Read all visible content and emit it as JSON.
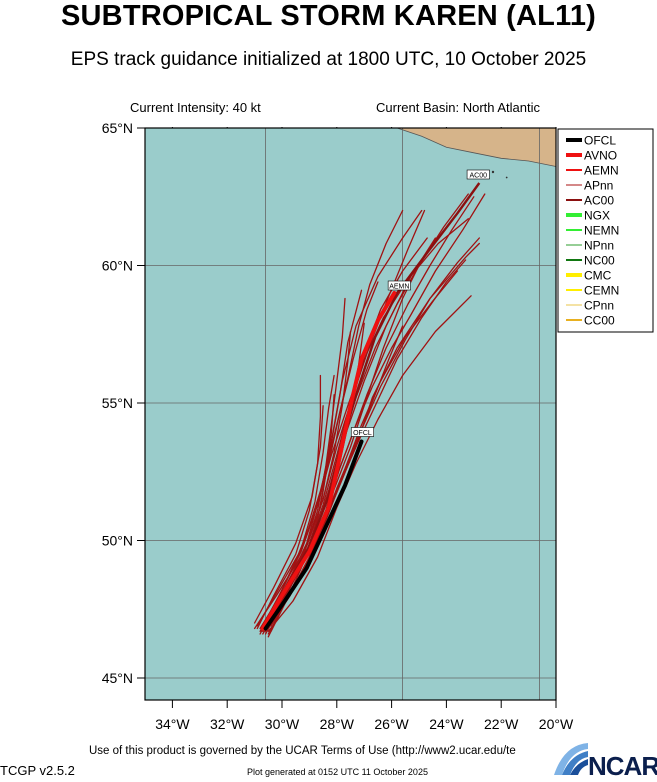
{
  "header": {
    "title": "SUBTROPICAL STORM KAREN (AL11)",
    "subtitle": "EPS track guidance initialized at 1800 UTC, 10 October 2025",
    "intensity": "Current Intensity: 40 kt",
    "basin": "Current Basin: North Atlantic"
  },
  "footer": {
    "terms": "Use of this product is governed by the UCAR Terms of Use (http://www2.ucar.edu/te",
    "version": "TCGP v2.5.2",
    "generated": "Plot generated at 0152 UTC   11 October 2025",
    "logo": "NCAR"
  },
  "map": {
    "lon_range": [
      -35,
      -20
    ],
    "lat_range": [
      44.2,
      65
    ],
    "ocean_color": "#9acccb",
    "land_color": "#d6b48a",
    "lon_ticks": [
      {
        "value": -34,
        "label": "34°W"
      },
      {
        "value": -32,
        "label": "32°W"
      },
      {
        "value": -30,
        "label": "30°W"
      },
      {
        "value": -28,
        "label": "28°W"
      },
      {
        "value": -26,
        "label": "26°W"
      },
      {
        "value": -24,
        "label": "24°W"
      },
      {
        "value": -22,
        "label": "22°W"
      },
      {
        "value": -20,
        "label": "20°W"
      }
    ],
    "lat_ticks": [
      {
        "value": 45,
        "label": "45°N"
      },
      {
        "value": 50,
        "label": "50°N"
      },
      {
        "value": 55,
        "label": "55°N"
      },
      {
        "value": 60,
        "label": "60°N"
      },
      {
        "value": 65,
        "label": "65°N"
      }
    ],
    "grid_lons": [
      -30.6,
      -25.6,
      -20.6
    ],
    "grid_lats": [
      45,
      50,
      55,
      60,
      65
    ],
    "land": [
      {
        "lon": -25.8,
        "lat": 65
      },
      {
        "lon": -24.9,
        "lat": 64.7
      },
      {
        "lon": -24.0,
        "lat": 64.3
      },
      {
        "lon": -23.0,
        "lat": 64.1
      },
      {
        "lon": -22.0,
        "lat": 63.9
      },
      {
        "lon": -21.0,
        "lat": 63.8
      },
      {
        "lon": -20.0,
        "lat": 63.6
      },
      {
        "lon": -19.3,
        "lat": 63.3
      },
      {
        "lon": -19.3,
        "lat": 65
      }
    ]
  },
  "legend": {
    "items": [
      {
        "label": "OFCL",
        "color": "#000000",
        "width": 4
      },
      {
        "label": "AVNO",
        "color": "#ee1111",
        "width": 4
      },
      {
        "label": "AEMN",
        "color": "#ee1111",
        "width": 2
      },
      {
        "label": "APnn",
        "color": "#aa1111",
        "width": 1
      },
      {
        "label": "AC00",
        "color": "#8b1010",
        "width": 2
      },
      {
        "label": "NGX",
        "color": "#33ee33",
        "width": 4
      },
      {
        "label": "NEMN",
        "color": "#33ee33",
        "width": 2
      },
      {
        "label": "NPnn",
        "color": "#2e9e2e",
        "width": 1
      },
      {
        "label": "NC00",
        "color": "#117711",
        "width": 2
      },
      {
        "label": "CMC",
        "color": "#ffee00",
        "width": 4
      },
      {
        "label": "CEMN",
        "color": "#ffee00",
        "width": 2
      },
      {
        "label": "CPnn",
        "color": "#e8c44a",
        "width": 1
      },
      {
        "label": "CC00",
        "color": "#e8b020",
        "width": 2
      }
    ]
  },
  "tracks": {
    "ofcl": {
      "label": "OFCL",
      "color": "#000000",
      "points": [
        [
          -30.6,
          46.8
        ],
        [
          -29.9,
          47.8
        ],
        [
          -29.1,
          49.0
        ],
        [
          -28.4,
          50.5
        ],
        [
          -27.7,
          52.0
        ],
        [
          -27.1,
          53.6
        ]
      ]
    },
    "aemn": {
      "label": "AEMN",
      "color": "#ee1111",
      "points": [
        [
          -30.7,
          46.8
        ],
        [
          -30.0,
          48.0
        ],
        [
          -29.0,
          49.6
        ],
        [
          -28.3,
          51.2
        ],
        [
          -27.9,
          53.0
        ],
        [
          -27.5,
          54.9
        ],
        [
          -27.1,
          56.6
        ],
        [
          -26.5,
          58.0
        ],
        [
          -25.9,
          59.0
        ]
      ]
    },
    "ac00": {
      "label": "AC00",
      "color": "#8b1010",
      "points": [
        [
          -30.7,
          46.8
        ],
        [
          -30.0,
          48.0
        ],
        [
          -29.0,
          49.8
        ],
        [
          -28.3,
          51.6
        ],
        [
          -27.8,
          53.6
        ],
        [
          -27.2,
          55.6
        ],
        [
          -26.6,
          57.4
        ],
        [
          -25.8,
          59.0
        ],
        [
          -24.6,
          60.6
        ],
        [
          -23.6,
          61.9
        ],
        [
          -22.8,
          63.0
        ]
      ]
    },
    "members": [
      [
        [
          -31.0,
          46.8
        ],
        [
          -30.2,
          48.0
        ],
        [
          -29.2,
          49.6
        ],
        [
          -28.6,
          51.2
        ],
        [
          -28.3,
          53.0
        ],
        [
          -27.9,
          55.2
        ],
        [
          -27.6,
          57.2
        ],
        [
          -27.1,
          59.1
        ]
      ],
      [
        [
          -30.6,
          46.8
        ],
        [
          -29.8,
          48.2
        ],
        [
          -28.9,
          49.8
        ],
        [
          -28.1,
          51.6
        ],
        [
          -27.3,
          53.4
        ],
        [
          -26.7,
          55.2
        ],
        [
          -25.8,
          57.0
        ],
        [
          -24.6,
          58.8
        ],
        [
          -23.3,
          60.3
        ],
        [
          -22.8,
          60.8
        ]
      ],
      [
        [
          -30.5,
          46.7
        ],
        [
          -29.6,
          47.8
        ],
        [
          -28.7,
          49.4
        ],
        [
          -28.0,
          51.2
        ],
        [
          -27.3,
          52.8
        ],
        [
          -26.5,
          54.4
        ],
        [
          -25.6,
          56.0
        ],
        [
          -24.4,
          57.6
        ],
        [
          -23.1,
          58.9
        ]
      ],
      [
        [
          -30.8,
          46.6
        ],
        [
          -30.1,
          48.0
        ],
        [
          -29.3,
          49.7
        ],
        [
          -28.8,
          51.4
        ],
        [
          -28.5,
          53.2
        ],
        [
          -28.3,
          54.8
        ],
        [
          -28.1,
          56.0
        ]
      ],
      [
        [
          -30.6,
          46.8
        ],
        [
          -29.9,
          48.1
        ],
        [
          -29.0,
          49.8
        ],
        [
          -28.3,
          51.6
        ],
        [
          -27.6,
          53.4
        ],
        [
          -26.9,
          55.3
        ],
        [
          -26.2,
          57.0
        ],
        [
          -25.4,
          58.6
        ],
        [
          -24.6,
          60.0
        ],
        [
          -23.8,
          61.3
        ],
        [
          -23.0,
          62.5
        ]
      ],
      [
        [
          -30.7,
          46.7
        ],
        [
          -30.0,
          48.0
        ],
        [
          -29.1,
          49.6
        ],
        [
          -28.5,
          51.3
        ],
        [
          -28.0,
          53.1
        ],
        [
          -27.5,
          55.0
        ],
        [
          -27.0,
          56.8
        ],
        [
          -26.4,
          58.4
        ],
        [
          -25.6,
          59.8
        ],
        [
          -24.7,
          61.0
        ]
      ],
      [
        [
          -30.9,
          46.9
        ],
        [
          -30.2,
          48.1
        ],
        [
          -29.4,
          49.5
        ],
        [
          -28.8,
          51.0
        ],
        [
          -28.3,
          52.8
        ],
        [
          -27.9,
          54.6
        ],
        [
          -27.4,
          56.6
        ],
        [
          -26.9,
          58.4
        ],
        [
          -26.5,
          59.4
        ]
      ],
      [
        [
          -30.5,
          46.5
        ],
        [
          -29.8,
          47.9
        ],
        [
          -29.0,
          49.4
        ],
        [
          -28.4,
          51.0
        ],
        [
          -27.9,
          52.6
        ],
        [
          -27.3,
          54.2
        ],
        [
          -26.7,
          55.6
        ],
        [
          -26.0,
          57.0
        ],
        [
          -25.3,
          58.2
        ],
        [
          -24.4,
          59.8
        ],
        [
          -23.4,
          61.3
        ],
        [
          -22.6,
          62.6
        ]
      ],
      [
        [
          -30.6,
          46.9
        ],
        [
          -29.9,
          48.2
        ],
        [
          -29.1,
          49.9
        ],
        [
          -28.6,
          51.7
        ],
        [
          -28.2,
          53.6
        ],
        [
          -27.8,
          55.8
        ],
        [
          -27.3,
          57.8
        ],
        [
          -26.5,
          59.6
        ],
        [
          -25.6,
          61.0
        ],
        [
          -24.9,
          62.0
        ]
      ],
      [
        [
          -30.7,
          46.7
        ],
        [
          -30.1,
          47.9
        ],
        [
          -29.2,
          49.5
        ],
        [
          -28.7,
          51.1
        ],
        [
          -28.4,
          52.7
        ],
        [
          -28.2,
          54.2
        ],
        [
          -28.0,
          55.8
        ],
        [
          -27.8,
          57.4
        ],
        [
          -27.7,
          58.8
        ]
      ],
      [
        [
          -30.5,
          46.8
        ],
        [
          -29.7,
          48.0
        ],
        [
          -28.8,
          49.7
        ],
        [
          -28.1,
          51.5
        ],
        [
          -27.4,
          53.2
        ],
        [
          -26.6,
          54.9
        ],
        [
          -25.8,
          56.6
        ],
        [
          -24.9,
          58.1
        ],
        [
          -24.0,
          59.4
        ],
        [
          -23.3,
          60.2
        ]
      ],
      [
        [
          -30.8,
          46.8
        ],
        [
          -30.0,
          48.1
        ],
        [
          -29.1,
          49.8
        ],
        [
          -28.5,
          51.5
        ],
        [
          -28.0,
          53.4
        ],
        [
          -27.4,
          55.3
        ],
        [
          -26.8,
          57.1
        ],
        [
          -26.1,
          58.9
        ],
        [
          -25.4,
          60.6
        ],
        [
          -24.8,
          62.0
        ]
      ],
      [
        [
          -30.6,
          46.6
        ],
        [
          -29.9,
          47.9
        ],
        [
          -29.1,
          49.5
        ],
        [
          -28.4,
          51.1
        ],
        [
          -27.9,
          52.8
        ],
        [
          -27.5,
          54.6
        ],
        [
          -27.2,
          56.4
        ],
        [
          -27.0,
          57.9
        ]
      ],
      [
        [
          -30.4,
          46.7
        ],
        [
          -29.7,
          48.1
        ],
        [
          -28.9,
          49.9
        ],
        [
          -28.3,
          51.8
        ],
        [
          -27.7,
          53.8
        ],
        [
          -27.0,
          55.8
        ],
        [
          -26.2,
          57.8
        ],
        [
          -25.3,
          59.6
        ],
        [
          -24.4,
          61.0
        ]
      ],
      [
        [
          -31.0,
          47.0
        ],
        [
          -30.3,
          48.3
        ],
        [
          -29.5,
          49.9
        ],
        [
          -28.9,
          51.6
        ],
        [
          -28.6,
          53.4
        ],
        [
          -28.5,
          54.9
        ]
      ],
      [
        [
          -30.6,
          46.8
        ],
        [
          -29.9,
          48.0
        ],
        [
          -29.0,
          49.6
        ],
        [
          -28.2,
          51.3
        ],
        [
          -27.5,
          53.0
        ],
        [
          -26.8,
          54.8
        ],
        [
          -26.1,
          56.6
        ],
        [
          -25.6,
          57.8
        ]
      ],
      [
        [
          -30.7,
          46.9
        ],
        [
          -30.0,
          48.2
        ],
        [
          -29.2,
          49.9
        ],
        [
          -28.6,
          51.8
        ],
        [
          -28.1,
          53.8
        ],
        [
          -27.6,
          55.9
        ],
        [
          -27.2,
          57.8
        ],
        [
          -26.8,
          59.3
        ],
        [
          -26.2,
          60.8
        ],
        [
          -25.6,
          62.0
        ]
      ],
      [
        [
          -30.5,
          46.6
        ],
        [
          -29.8,
          47.9
        ],
        [
          -29.0,
          49.4
        ],
        [
          -28.3,
          51.0
        ],
        [
          -27.7,
          52.6
        ],
        [
          -27.1,
          54.2
        ],
        [
          -26.4,
          55.8
        ],
        [
          -25.5,
          57.4
        ],
        [
          -24.5,
          58.7
        ],
        [
          -23.6,
          59.8
        ]
      ],
      [
        [
          -30.8,
          46.7
        ],
        [
          -30.1,
          48.0
        ],
        [
          -29.3,
          49.6
        ],
        [
          -28.7,
          51.3
        ],
        [
          -28.2,
          53.1
        ],
        [
          -27.6,
          54.9
        ],
        [
          -27.0,
          56.6
        ],
        [
          -26.3,
          58.1
        ],
        [
          -25.4,
          59.5
        ],
        [
          -24.3,
          60.8
        ],
        [
          -23.2,
          61.7
        ]
      ],
      [
        [
          -30.6,
          46.8
        ],
        [
          -29.9,
          48.1
        ],
        [
          -29.1,
          49.8
        ],
        [
          -28.5,
          51.5
        ],
        [
          -28.1,
          53.2
        ],
        [
          -27.8,
          54.9
        ],
        [
          -27.6,
          56.5
        ],
        [
          -27.5,
          57.6
        ]
      ],
      [
        [
          -30.9,
          46.8
        ],
        [
          -30.3,
          48.0
        ],
        [
          -29.5,
          49.5
        ],
        [
          -29.0,
          51.1
        ],
        [
          -28.7,
          52.8
        ],
        [
          -28.6,
          54.5
        ],
        [
          -28.6,
          56.0
        ]
      ],
      [
        [
          -30.4,
          46.9
        ],
        [
          -29.6,
          48.2
        ],
        [
          -28.7,
          50.0
        ],
        [
          -28.0,
          51.9
        ],
        [
          -27.2,
          53.8
        ],
        [
          -26.4,
          55.6
        ],
        [
          -25.5,
          57.3
        ],
        [
          -24.6,
          58.8
        ],
        [
          -23.6,
          60.1
        ],
        [
          -22.8,
          61.0
        ]
      ],
      [
        [
          -30.6,
          46.7
        ],
        [
          -29.9,
          48.0
        ],
        [
          -29.0,
          49.7
        ],
        [
          -28.4,
          51.4
        ],
        [
          -27.9,
          53.3
        ],
        [
          -27.3,
          55.2
        ],
        [
          -26.6,
          57.0
        ],
        [
          -25.8,
          58.6
        ],
        [
          -25.0,
          60.0
        ],
        [
          -24.1,
          61.4
        ],
        [
          -23.2,
          62.6
        ]
      ],
      [
        [
          -30.7,
          46.6
        ],
        [
          -30.0,
          47.8
        ],
        [
          -29.2,
          49.3
        ],
        [
          -28.7,
          50.8
        ],
        [
          -28.4,
          52.4
        ],
        [
          -28.2,
          53.9
        ],
        [
          -28.1,
          55.3
        ]
      ],
      [
        [
          -30.5,
          46.8
        ],
        [
          -29.8,
          48.1
        ],
        [
          -28.9,
          49.8
        ],
        [
          -28.2,
          51.6
        ],
        [
          -27.5,
          53.4
        ],
        [
          -26.9,
          55.2
        ],
        [
          -26.3,
          57.0
        ],
        [
          -25.6,
          58.8
        ],
        [
          -24.9,
          60.2
        ]
      ]
    ]
  }
}
